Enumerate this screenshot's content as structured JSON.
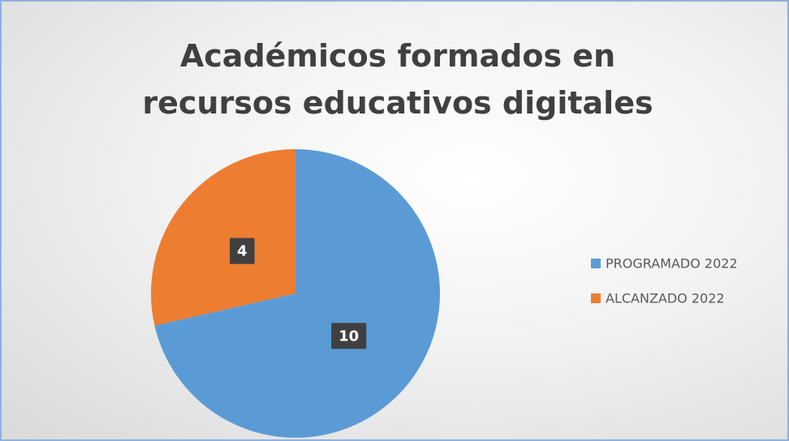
{
  "chart_data": {
    "type": "pie",
    "title": "Académicos formados en recursos educativos digitales",
    "categories": [
      "PROGRAMADO 2022",
      "ALCANZADO 2022"
    ],
    "values": [
      10,
      4
    ],
    "colors": [
      "#5b9bd5",
      "#ed7d31"
    ],
    "legend": "right"
  }
}
